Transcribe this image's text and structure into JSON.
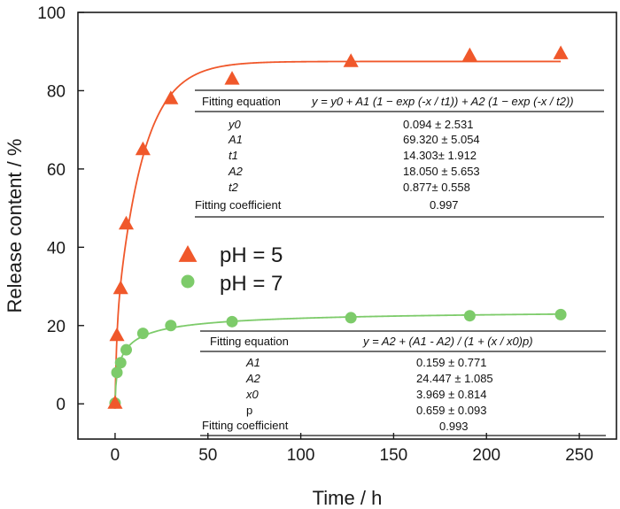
{
  "chart_data": {
    "type": "scatter",
    "xlabel": "Time / h",
    "ylabel": "Release content / %",
    "xlim": [
      -20,
      270
    ],
    "ylim": [
      -9,
      100
    ],
    "xticks": [
      0,
      50,
      100,
      150,
      200,
      250
    ],
    "yticks": [
      0,
      20,
      40,
      60,
      80,
      100
    ],
    "xtick_labels": [
      "0",
      "50",
      "100",
      "150",
      "200",
      "250"
    ],
    "ytick_labels": [
      "0",
      "20",
      "40",
      "60",
      "80",
      "100"
    ],
    "grid": false,
    "legend_position": "center-left",
    "series": [
      {
        "name": "pH = 5",
        "marker": "triangle",
        "color": "#f0582b",
        "x": [
          0,
          1,
          3,
          6,
          15,
          30,
          63,
          127,
          191,
          240
        ],
        "y": [
          0.2,
          17.5,
          29.5,
          46,
          65,
          78,
          83,
          87.5,
          89,
          89.5
        ],
        "fit": {
          "model": "double-exponential",
          "y0": 0.094,
          "A1": 69.32,
          "t1": 14.303,
          "A2": 18.05,
          "t2": 0.877
        }
      },
      {
        "name": "pH = 7",
        "marker": "circle",
        "color": "#7dcb6a",
        "x": [
          0,
          1,
          3,
          6,
          15,
          30,
          63,
          127,
          191,
          240
        ],
        "y": [
          0.2,
          8,
          10.5,
          13.8,
          18,
          20,
          21,
          22,
          22.5,
          22.8
        ],
        "fit": {
          "model": "logistic",
          "A1": 0.159,
          "A2": 24.447,
          "x0": 3.969,
          "p": 0.659
        }
      }
    ],
    "legend": [
      {
        "label": "pH = 5",
        "marker": "triangle",
        "color": "#f0582b"
      },
      {
        "label": "pH = 7",
        "marker": "circle",
        "color": "#7dcb6a"
      }
    ]
  },
  "tables": {
    "ph5": {
      "header_left": "Fitting equation",
      "equation": "y = y0 + A1 (1 − exp (-x / t1)) + A2 (1 − exp (-x / t2))",
      "rows": [
        {
          "name": "y0",
          "value": "0.094 ± 2.531"
        },
        {
          "name": "A1",
          "value": "69.320 ± 5.054"
        },
        {
          "name": "t1",
          "value": "14.303± 1.912"
        },
        {
          "name": "A2",
          "value": "18.050 ± 5.653"
        },
        {
          "name": "t2",
          "value": "0.877± 0.558"
        }
      ],
      "coef_label": "Fitting coefficient",
      "coef_value": "0.997"
    },
    "ph7": {
      "header_left": "Fitting equation",
      "equation": "y = A2 + (A1 - A2) / (1 + (x / x0)p)",
      "rows": [
        {
          "name": "A1",
          "value": "0.159 ± 0.771"
        },
        {
          "name": "A2",
          "value": "24.447 ± 1.085"
        },
        {
          "name": "x0",
          "value": "3.969 ± 0.814"
        },
        {
          "name": "p",
          "value": "0.659 ± 0.093"
        }
      ],
      "coef_label": "Fitting coefficient",
      "coef_value": "0.993"
    }
  }
}
